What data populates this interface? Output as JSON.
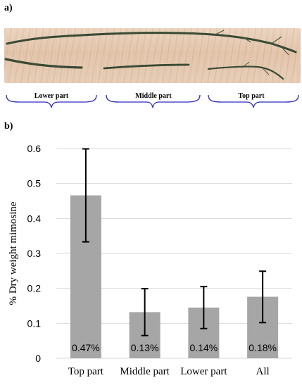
{
  "panels": {
    "a": "a)",
    "b": "b)"
  },
  "photo_sections": [
    "Lower part",
    "Middle part",
    "Top part"
  ],
  "colors": {
    "bar": "#a6a6a6",
    "grid": "#d9d9d9",
    "brace": "#2b2bbd",
    "branch": "#3a4a34"
  },
  "chart_data": {
    "type": "bar",
    "categories": [
      "Top part",
      "Middle part",
      "Lower part",
      "All"
    ],
    "values": [
      0.466,
      0.132,
      0.145,
      0.176
    ],
    "error_low": [
      0.333,
      0.065,
      0.085,
      0.102
    ],
    "error_high": [
      0.599,
      0.199,
      0.205,
      0.249
    ],
    "data_labels": [
      "0.47%",
      "0.13%",
      "0.14%",
      "0.18%"
    ],
    "ylabel": "% Dry weight mimosine",
    "xlabel": "",
    "ylim": [
      0,
      0.6
    ],
    "yticks": [
      "0",
      "0.1",
      "0.2",
      "0.3",
      "0.4",
      "0.5",
      "0.6"
    ],
    "grid": true
  }
}
